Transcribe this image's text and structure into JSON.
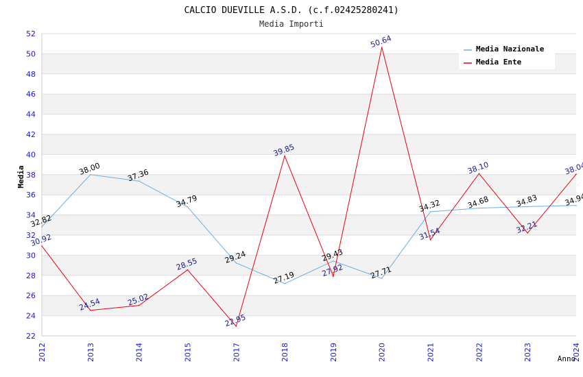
{
  "chart_data": {
    "type": "line",
    "title": "CALCIO DUEVILLE A.S.D. (c.f.02425280241)",
    "subtitle": "Media Importi",
    "xlabel": "Anno",
    "ylabel": "Media",
    "ylim": [
      22,
      52
    ],
    "yticks": [
      22,
      24,
      26,
      28,
      30,
      32,
      34,
      36,
      38,
      40,
      42,
      44,
      46,
      48,
      50,
      52
    ],
    "categories": [
      "2012",
      "2013",
      "2014",
      "2015",
      "2017",
      "2018",
      "2019",
      "2020",
      "2021",
      "2022",
      "2023",
      "2024"
    ],
    "legend_position": "top-right",
    "grid": true,
    "series": [
      {
        "name": "Media Nazionale",
        "color": "#6aaee8",
        "label_color": "#000000",
        "values": [
          32.82,
          38.0,
          37.36,
          34.79,
          29.24,
          27.19,
          29.43,
          27.71,
          34.32,
          34.68,
          34.83,
          34.94
        ],
        "labels": [
          "32.82",
          "38.00",
          "37.36",
          "34.79",
          "29.24",
          "27.19",
          "29.43",
          "27.71",
          "34.32",
          "34.68",
          "34.83",
          "34.94"
        ]
      },
      {
        "name": "Media Ente",
        "color": "#e8000b",
        "label_color": "#1a1a8c",
        "values": [
          30.92,
          24.54,
          25.02,
          28.55,
          22.95,
          39.85,
          27.92,
          50.64,
          31.54,
          38.1,
          32.21,
          38.04
        ],
        "labels": [
          "30.92",
          "24.54",
          "25.02",
          "28.55",
          "22.95",
          "39.85",
          "27.92",
          "50.64",
          "31.54",
          "38.10",
          "32.21",
          "38.04"
        ]
      }
    ]
  }
}
